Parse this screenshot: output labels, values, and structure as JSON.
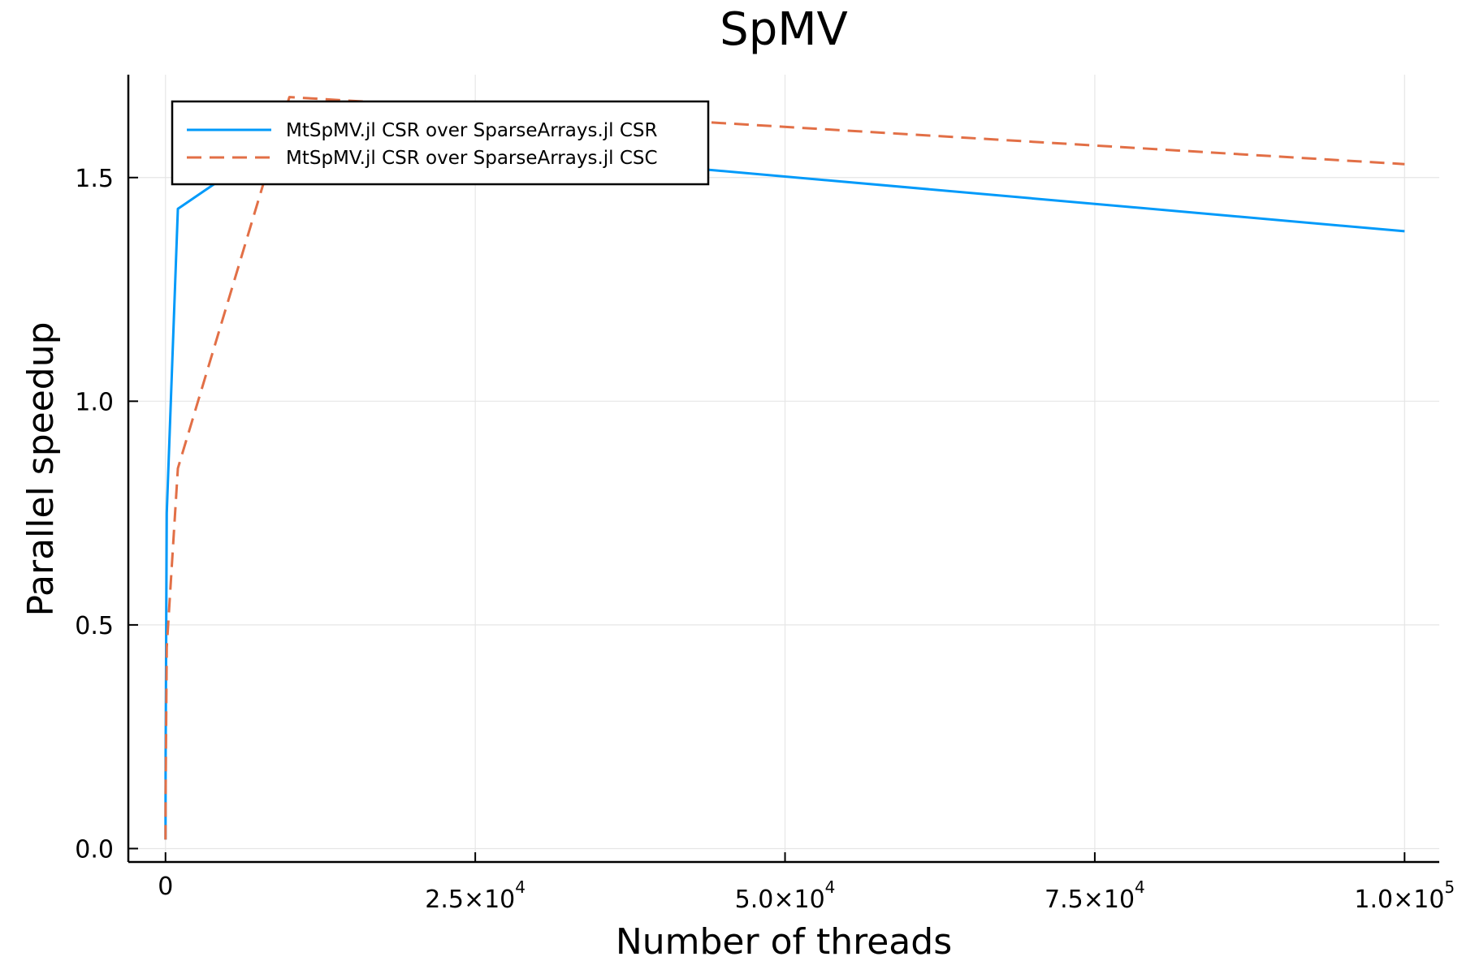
{
  "chart_data": {
    "type": "line",
    "title": "SpMV",
    "xlabel": "Number of threads",
    "ylabel": "Parallel speedup",
    "xlim": [
      -3000,
      102800
    ],
    "ylim": [
      -0.03,
      1.73
    ],
    "grid": true,
    "legend_position": "top-left",
    "x_ticks": [
      {
        "value": 0,
        "base": "0",
        "exp": ""
      },
      {
        "value": 25000,
        "base": "2.5×10",
        "exp": "4"
      },
      {
        "value": 50000,
        "base": "5.0×10",
        "exp": "4"
      },
      {
        "value": 75000,
        "base": "7.5×10",
        "exp": "4"
      },
      {
        "value": 100000,
        "base": "1.0×10",
        "exp": "5"
      }
    ],
    "y_ticks": [
      {
        "value": 0.0,
        "label": "0.0"
      },
      {
        "value": 0.5,
        "label": "0.5"
      },
      {
        "value": 1.0,
        "label": "1.0"
      },
      {
        "value": 1.5,
        "label": "1.5"
      }
    ],
    "x": [
      1,
      10,
      100,
      1000,
      10000,
      100000
    ],
    "series": [
      {
        "name": "MtSpMV.jl CSR over SparseArrays.jl CSR",
        "values": [
          0.02,
          0.2,
          0.75,
          1.43,
          1.6,
          1.38
        ],
        "color": "#009AFA",
        "dash": "solid"
      },
      {
        "name": "MtSpMV.jl CSR over SparseArrays.jl CSC",
        "values": [
          0.02,
          0.12,
          0.45,
          0.85,
          1.68,
          1.53
        ],
        "color": "#E26F46",
        "dash": "dashed"
      }
    ]
  }
}
